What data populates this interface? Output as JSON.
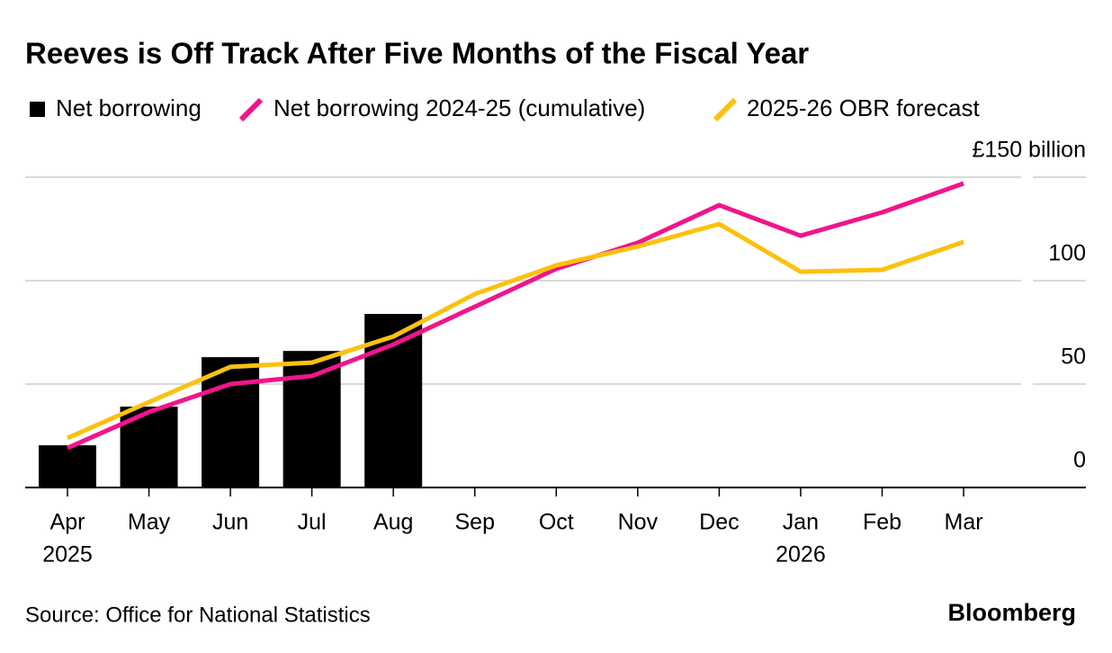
{
  "chart_data": {
    "type": "bar",
    "title": "Reeves is Off Track After Five Months of the Fiscal Year",
    "categories": [
      "Apr",
      "May",
      "Jun",
      "Jul",
      "Aug",
      "Sep",
      "Oct",
      "Nov",
      "Dec",
      "Jan",
      "Feb",
      "Mar"
    ],
    "year_labels": [
      "2025",
      null,
      null,
      null,
      null,
      null,
      null,
      null,
      null,
      "2026",
      null,
      null
    ],
    "series": [
      {
        "name": "Net borrowing",
        "type": "bar",
        "color": "#000000",
        "values": [
          20.4,
          39.1,
          63,
          66,
          83.9,
          null,
          null,
          null,
          null,
          null,
          null,
          null
        ]
      },
      {
        "name": "Net borrowing 2024-25 (cumulative)",
        "type": "line",
        "color": "#f0158c",
        "values": [
          19.1,
          36.5,
          50,
          53.9,
          69.1,
          87.4,
          105.7,
          118.3,
          136.5,
          121.7,
          133,
          147
        ]
      },
      {
        "name": "2025-26 OBR forecast",
        "type": "line",
        "color": "#fcc10f",
        "values": [
          23.9,
          41.3,
          58.3,
          60.4,
          73,
          93.5,
          107.4,
          116.5,
          127.4,
          104.3,
          105.2,
          118.7
        ]
      }
    ],
    "ylim": [
      0,
      150
    ],
    "yticks": [
      0,
      50,
      100,
      {
        "value": 150,
        "label": "£150 billion"
      }
    ],
    "grid": true,
    "source": "Source: Office for National Statistics",
    "brand": "Bloomberg"
  }
}
